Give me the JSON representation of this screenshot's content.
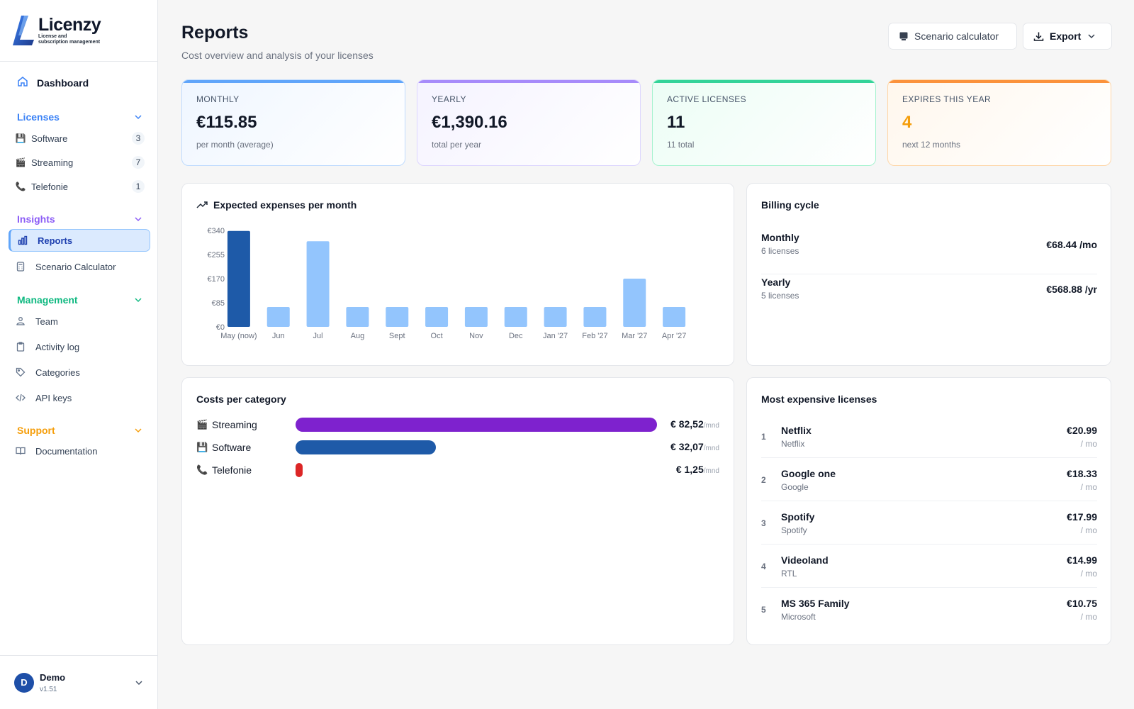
{
  "brand": {
    "name": "Licenzy",
    "tagline_1": "License and",
    "tagline_2": "subscription management"
  },
  "sidebar": {
    "dashboard": "Dashboard",
    "licenses": {
      "title": "Licenses",
      "color": "#3b82f6",
      "items": [
        {
          "label": "Software",
          "icon": "floppy-icon",
          "count": "3"
        },
        {
          "label": "Streaming",
          "icon": "clapper-icon",
          "count": "7"
        },
        {
          "label": "Telefonie",
          "icon": "phone-icon",
          "count": "1"
        }
      ]
    },
    "insights": {
      "title": "Insights",
      "color": "#8b5cf6",
      "items": [
        {
          "label": "Reports",
          "icon": "bar-chart-icon"
        },
        {
          "label": "Scenario Calculator",
          "icon": "calculator-icon"
        }
      ]
    },
    "management": {
      "title": "Management",
      "color": "#10b981",
      "items": [
        {
          "label": "Team",
          "icon": "team-icon"
        },
        {
          "label": "Activity log",
          "icon": "clipboard-icon"
        },
        {
          "label": "Categories",
          "icon": "tag-icon"
        },
        {
          "label": "API keys",
          "icon": "code-icon"
        }
      ]
    },
    "support": {
      "title": "Support",
      "color": "#f59e0b",
      "items": [
        {
          "label": "Documentation",
          "icon": "book-icon"
        }
      ]
    },
    "user": {
      "initial": "D",
      "name": "Demo",
      "version": "v1.51"
    }
  },
  "header": {
    "title": "Reports",
    "subtitle": "Cost overview and analysis of your licenses",
    "calc_label": "Scenario calculator",
    "export_label": "Export"
  },
  "kpis": [
    {
      "label": "MONTHLY",
      "value": "€115.85",
      "sub": "per month (average)",
      "accent": "#60a5fa"
    },
    {
      "label": "YEARLY",
      "value": "€1,390.16",
      "sub": "total per year",
      "accent": "#a78bfa"
    },
    {
      "label": "ACTIVE LICENSES",
      "value": "11",
      "sub": "11 total",
      "accent": "#34d399"
    },
    {
      "label": "EXPIRES THIS YEAR",
      "value": "4",
      "sub": "next 12 months",
      "accent": "#fb923c"
    }
  ],
  "chart_card": {
    "title": "Expected expenses per month"
  },
  "chart_data": {
    "type": "bar",
    "categories": [
      "May (now)",
      "Jun",
      "Jul",
      "Aug",
      "Sept",
      "Oct",
      "Nov",
      "Dec",
      "Jan '27",
      "Feb '27",
      "Mar '27",
      "Apr '27"
    ],
    "values": [
      338,
      70,
      302,
      70,
      70,
      70,
      70,
      70,
      70,
      70,
      170,
      70
    ],
    "yticks": [
      "€0",
      "€85",
      "€170",
      "€255",
      "€340"
    ],
    "ylim": [
      0,
      340
    ],
    "colors": {
      "current": "#1e5aa8",
      "future": "#93c5fd"
    },
    "grid": false
  },
  "billing": {
    "title": "Billing cycle",
    "rows": [
      {
        "label": "Monthly",
        "sub": "6 licenses",
        "value": "€68.44 /mo"
      },
      {
        "label": "Yearly",
        "sub": "5 licenses",
        "value": "€568.88 /yr"
      }
    ]
  },
  "categories_card": {
    "title": "Costs per category",
    "rows": [
      {
        "icon": "clapper-icon",
        "name": "Streaming",
        "value": "€ 82,52",
        "unit": "/mnd",
        "amount": 82.52,
        "color": "#7e22ce"
      },
      {
        "icon": "floppy-icon",
        "name": "Software",
        "value": "€ 32,07",
        "unit": "/mnd",
        "amount": 32.07,
        "color": "#1e5aa8"
      },
      {
        "icon": "phone-icon",
        "name": "Telefonie",
        "value": "€ 1,25",
        "unit": "/mnd",
        "amount": 1.25,
        "color": "#dc2626"
      }
    ]
  },
  "top": {
    "title": "Most expensive licenses",
    "rows": [
      {
        "rank": "1",
        "name": "Netflix",
        "vendor": "Netflix",
        "price": "€20.99",
        "unit": "/ mo"
      },
      {
        "rank": "2",
        "name": "Google one",
        "vendor": "Google",
        "price": "€18.33",
        "unit": "/ mo"
      },
      {
        "rank": "3",
        "name": "Spotify",
        "vendor": "Spotify",
        "price": "€17.99",
        "unit": "/ mo"
      },
      {
        "rank": "4",
        "name": "Videoland",
        "vendor": "RTL",
        "price": "€14.99",
        "unit": "/ mo"
      },
      {
        "rank": "5",
        "name": "MS 365 Family",
        "vendor": "Microsoft",
        "price": "€10.75",
        "unit": "/ mo"
      }
    ]
  }
}
